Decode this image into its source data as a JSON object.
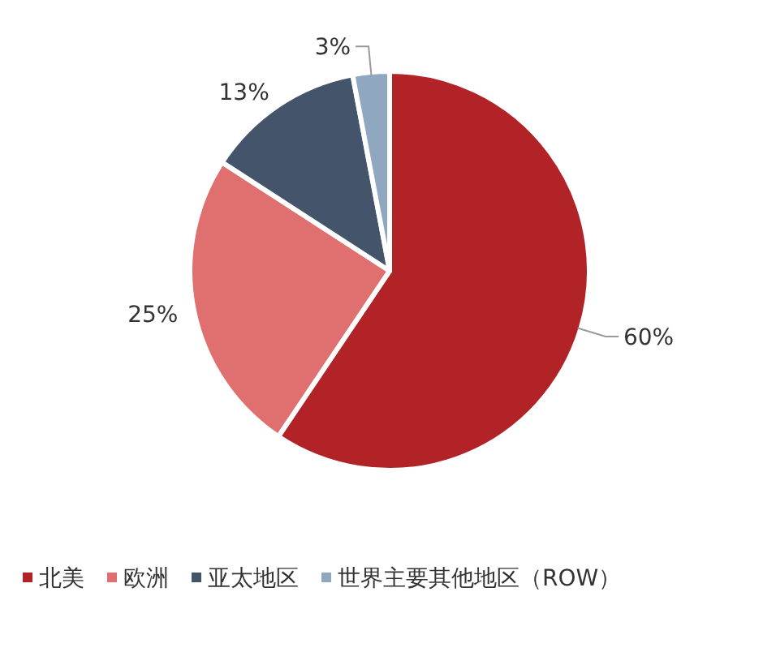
{
  "chart_data": {
    "type": "pie",
    "categories": [
      "北美",
      "欧洲",
      "亚太地区",
      "世界主要其他地区（ROW）"
    ],
    "values": [
      60,
      25,
      13,
      3
    ],
    "colors": [
      "#b22327",
      "#e06f6f",
      "#44546a",
      "#8fa8c0"
    ],
    "value_labels": [
      "60%",
      "25%",
      "13%",
      "3%"
    ],
    "legend": "bottom"
  }
}
